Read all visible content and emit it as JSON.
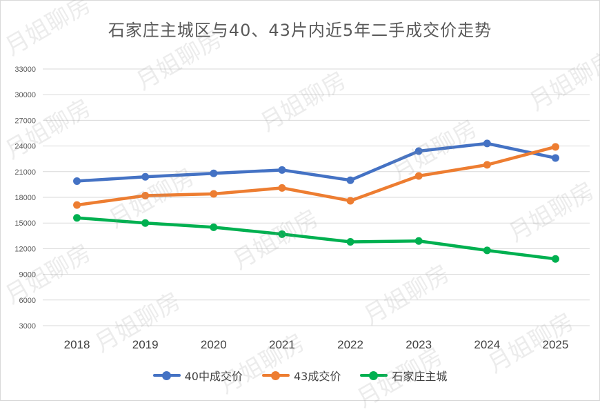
{
  "title": "石家庄主城区与40、43片内近5年二手成交价走势",
  "watermark_text": "月姐聊房",
  "chart_data": {
    "type": "line",
    "title": "石家庄主城区与40、43片内近5年二手成交价走势",
    "xlabel": "",
    "ylabel": "",
    "categories": [
      "2018",
      "2019",
      "2020",
      "2021",
      "2022",
      "2023",
      "2024",
      "2025"
    ],
    "ylim": [
      3000,
      33000
    ],
    "yticks": [
      3000,
      6000,
      9000,
      12000,
      15000,
      18000,
      21000,
      24000,
      27000,
      30000,
      33000
    ],
    "grid": true,
    "legend_position": "bottom",
    "series": [
      {
        "name": "40中成交价",
        "color": "#4472C4",
        "values": [
          19900,
          20400,
          20800,
          21200,
          20000,
          23400,
          24300,
          22600
        ]
      },
      {
        "name": "43成交价",
        "color": "#ED7D31",
        "values": [
          17100,
          18200,
          18400,
          19100,
          17600,
          20500,
          21800,
          23900
        ]
      },
      {
        "name": "石家庄主城",
        "color": "#00B050",
        "values": [
          15600,
          15000,
          14500,
          13700,
          12800,
          12900,
          11800,
          10800
        ]
      }
    ]
  }
}
